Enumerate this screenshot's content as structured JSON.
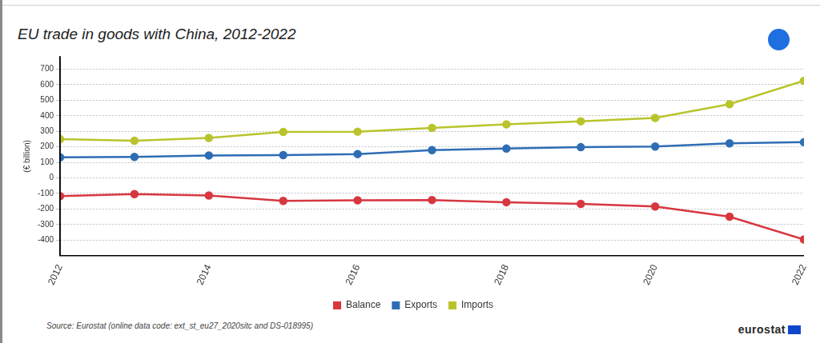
{
  "chart_data": {
    "type": "line",
    "title": "EU trade in goods with China, 2012-2022",
    "y_label": "(€ billion)",
    "source": "Source: Eurostat (online data code: ext_st_eu27_2020sitc and DS-018995)",
    "logo": "eurostat",
    "x": [
      2012,
      2013,
      2014,
      2015,
      2016,
      2017,
      2018,
      2019,
      2020,
      2021,
      2022
    ],
    "xlim": [
      2012,
      2022
    ],
    "xticks": [
      2012,
      2014,
      2016,
      2018,
      2020,
      2022
    ],
    "ylim": [
      -500,
      780
    ],
    "yticks": [
      -400,
      -300,
      -200,
      -100,
      0,
      100,
      200,
      300,
      400,
      500,
      600,
      700
    ],
    "grid": true,
    "legend": "bottom",
    "series": [
      {
        "name": "Balance",
        "color": "#d7373f",
        "marker": "circle",
        "values": [
          -117,
          -104,
          -113,
          -148,
          -144,
          -142,
          -156,
          -167,
          -184,
          -249,
          -396
        ]
      },
      {
        "name": "Exports",
        "color": "#2e6db4",
        "marker": "circle",
        "values": [
          133,
          135,
          145,
          147,
          154,
          179,
          189,
          198,
          202,
          223,
          230
        ]
      },
      {
        "name": "Imports",
        "color": "#b9c42c",
        "marker": "circle",
        "values": [
          250,
          240,
          258,
          296,
          298,
          322,
          345,
          365,
          386,
          475,
          626
        ]
      }
    ]
  }
}
